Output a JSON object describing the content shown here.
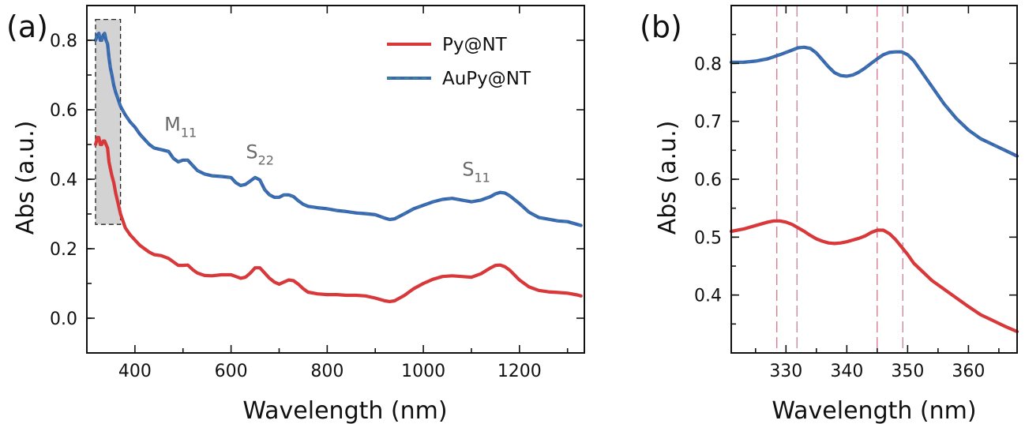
{
  "colors": {
    "py": "#d9383a",
    "aupy": "#3b64b4",
    "aupy_dash": "#2f9a8a",
    "highlight_fill": "#d3d3d3",
    "vline_red": "#c9264a",
    "vline_dark": "#a04060"
  },
  "chart_data": [
    {
      "panel_label": "(a)",
      "type": "line",
      "xlabel": "Wavelength (nm)",
      "ylabel": "Abs (a.u.)",
      "xlim": [
        300,
        1335
      ],
      "ylim": [
        -0.1,
        0.9
      ],
      "xticks": [
        400,
        600,
        800,
        1000,
        1200
      ],
      "yticks": [
        0.0,
        0.2,
        0.4,
        0.6,
        0.8
      ],
      "xtick_labels": [
        "400",
        "600",
        "800",
        "1000",
        "1200"
      ],
      "ytick_labels": [
        "0.0",
        "0.2",
        "0.4",
        "0.6",
        "0.8"
      ],
      "legend_position": "top-right",
      "highlight_region": {
        "x": [
          318,
          370
        ],
        "y": [
          0.27,
          0.86
        ]
      },
      "annotations": [
        {
          "main": "M",
          "sub": "11",
          "x": 495,
          "y": 0.54
        },
        {
          "main": "S",
          "sub": "22",
          "x": 660,
          "y": 0.46
        },
        {
          "main": "S",
          "sub": "11",
          "x": 1110,
          "y": 0.41
        }
      ],
      "series": [
        {
          "name": "Py@NT",
          "color_key": "py",
          "x": [
            318,
            322,
            325,
            328,
            331,
            334,
            337,
            340,
            343,
            346,
            349,
            352,
            356,
            360,
            365,
            370,
            380,
            390,
            400,
            410,
            420,
            430,
            440,
            455,
            470,
            480,
            490,
            500,
            510,
            520,
            530,
            545,
            560,
            580,
            600,
            610,
            620,
            630,
            640,
            650,
            660,
            670,
            680,
            690,
            700,
            710,
            720,
            730,
            740,
            750,
            760,
            780,
            800,
            820,
            840,
            860,
            880,
            900,
            920,
            930,
            940,
            960,
            980,
            1000,
            1020,
            1040,
            1060,
            1080,
            1100,
            1120,
            1140,
            1150,
            1160,
            1170,
            1180,
            1200,
            1220,
            1240,
            1260,
            1280,
            1300,
            1320,
            1328
          ],
          "y": [
            0.5,
            0.52,
            0.52,
            0.5,
            0.5,
            0.51,
            0.51,
            0.5,
            0.49,
            0.45,
            0.43,
            0.41,
            0.39,
            0.36,
            0.33,
            0.3,
            0.26,
            0.24,
            0.225,
            0.21,
            0.2,
            0.19,
            0.183,
            0.18,
            0.172,
            0.162,
            0.152,
            0.152,
            0.153,
            0.14,
            0.13,
            0.123,
            0.122,
            0.125,
            0.125,
            0.12,
            0.115,
            0.118,
            0.13,
            0.145,
            0.145,
            0.13,
            0.115,
            0.104,
            0.098,
            0.104,
            0.11,
            0.108,
            0.098,
            0.085,
            0.075,
            0.07,
            0.068,
            0.068,
            0.066,
            0.066,
            0.064,
            0.058,
            0.05,
            0.048,
            0.05,
            0.065,
            0.085,
            0.1,
            0.112,
            0.12,
            0.122,
            0.12,
            0.118,
            0.128,
            0.145,
            0.152,
            0.153,
            0.148,
            0.138,
            0.11,
            0.09,
            0.08,
            0.076,
            0.074,
            0.072,
            0.067,
            0.064
          ]
        },
        {
          "name": "AuPy@NT",
          "color_key": "aupy",
          "x": [
            318,
            322,
            325,
            328,
            331,
            334,
            337,
            340,
            343,
            346,
            349,
            352,
            356,
            360,
            365,
            370,
            380,
            390,
            400,
            410,
            420,
            430,
            440,
            455,
            470,
            480,
            490,
            500,
            510,
            520,
            530,
            545,
            560,
            580,
            600,
            610,
            620,
            630,
            640,
            650,
            660,
            670,
            680,
            690,
            700,
            710,
            720,
            730,
            740,
            750,
            760,
            780,
            800,
            820,
            840,
            860,
            880,
            900,
            920,
            930,
            940,
            960,
            980,
            1000,
            1020,
            1040,
            1060,
            1080,
            1100,
            1120,
            1140,
            1150,
            1160,
            1170,
            1180,
            1200,
            1220,
            1240,
            1260,
            1280,
            1300,
            1320,
            1328
          ],
          "y": [
            0.8,
            0.815,
            0.82,
            0.8,
            0.8,
            0.815,
            0.82,
            0.8,
            0.79,
            0.75,
            0.72,
            0.7,
            0.67,
            0.65,
            0.63,
            0.61,
            0.585,
            0.565,
            0.55,
            0.53,
            0.515,
            0.5,
            0.49,
            0.485,
            0.48,
            0.46,
            0.45,
            0.455,
            0.455,
            0.44,
            0.425,
            0.415,
            0.41,
            0.408,
            0.405,
            0.39,
            0.382,
            0.385,
            0.395,
            0.405,
            0.398,
            0.37,
            0.355,
            0.348,
            0.348,
            0.355,
            0.355,
            0.35,
            0.338,
            0.328,
            0.322,
            0.318,
            0.315,
            0.31,
            0.307,
            0.303,
            0.301,
            0.298,
            0.288,
            0.284,
            0.286,
            0.3,
            0.315,
            0.325,
            0.335,
            0.342,
            0.345,
            0.34,
            0.335,
            0.34,
            0.35,
            0.358,
            0.362,
            0.36,
            0.352,
            0.33,
            0.305,
            0.29,
            0.285,
            0.28,
            0.278,
            0.27,
            0.267
          ]
        }
      ]
    },
    {
      "panel_label": "(b)",
      "type": "line",
      "xlabel": "Wavelength (nm)",
      "ylabel": "Abs (a.u.)",
      "xlim": [
        321,
        368
      ],
      "ylim": [
        0.3,
        0.9
      ],
      "xticks": [
        330,
        340,
        350,
        360
      ],
      "yticks": [
        0.4,
        0.5,
        0.6,
        0.7,
        0.8
      ],
      "xtick_labels": [
        "330",
        "340",
        "350",
        "360"
      ],
      "ytick_labels": [
        "0.4",
        "0.5",
        "0.6",
        "0.7",
        "0.8"
      ],
      "vertical_lines": [
        {
          "x": 328.5,
          "color_key": "vline_red"
        },
        {
          "x": 331.8,
          "color_key": "vline_dark"
        },
        {
          "x": 345.0,
          "color_key": "vline_red"
        },
        {
          "x": 349.2,
          "color_key": "vline_dark"
        }
      ],
      "series": [
        {
          "name": "",
          "color_key": "aupy",
          "x": [
            321,
            323,
            325,
            327,
            329,
            331,
            332,
            333,
            334,
            335,
            336,
            337,
            338,
            339,
            340,
            341,
            342,
            343,
            344,
            345,
            346,
            347,
            348,
            349,
            350,
            351,
            352,
            354,
            356,
            358,
            360,
            362,
            364,
            366,
            368
          ],
          "y": [
            0.802,
            0.802,
            0.804,
            0.808,
            0.815,
            0.823,
            0.827,
            0.828,
            0.826,
            0.818,
            0.806,
            0.794,
            0.784,
            0.779,
            0.778,
            0.78,
            0.785,
            0.792,
            0.8,
            0.808,
            0.815,
            0.819,
            0.82,
            0.82,
            0.815,
            0.805,
            0.79,
            0.76,
            0.73,
            0.705,
            0.685,
            0.67,
            0.66,
            0.65,
            0.64
          ]
        },
        {
          "name": "",
          "color_key": "py",
          "x": [
            321,
            323,
            325,
            327,
            328,
            329,
            330,
            331,
            332,
            333,
            334,
            335,
            336,
            337,
            338,
            339,
            340,
            341,
            342,
            343,
            344,
            345,
            346,
            347,
            348,
            349,
            350,
            351,
            352,
            354,
            356,
            358,
            360,
            362,
            364,
            366,
            368
          ],
          "y": [
            0.51,
            0.514,
            0.52,
            0.526,
            0.528,
            0.528,
            0.526,
            0.522,
            0.516,
            0.51,
            0.503,
            0.497,
            0.493,
            0.49,
            0.489,
            0.49,
            0.492,
            0.495,
            0.498,
            0.502,
            0.508,
            0.512,
            0.512,
            0.506,
            0.496,
            0.483,
            0.47,
            0.455,
            0.445,
            0.425,
            0.41,
            0.395,
            0.38,
            0.366,
            0.356,
            0.346,
            0.337
          ]
        }
      ]
    }
  ]
}
